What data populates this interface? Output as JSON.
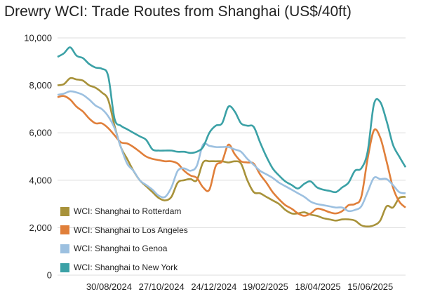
{
  "chart_data": {
    "type": "line",
    "title": "Drewry WCI: Trade Routes from Shanghai (US$/40ft)",
    "xlabel": "",
    "ylabel": "",
    "ylim": [
      0,
      10000
    ],
    "yticks": [
      "0",
      "2,000",
      "4,000",
      "6,000",
      "8,000",
      "10,000"
    ],
    "xticks": [
      "30/08/2024",
      "27/10/2024",
      "24/12/2024",
      "19/02/2025",
      "18/04/2025",
      "15/06/2025"
    ],
    "x": [
      "2024-07-04",
      "2024-07-11",
      "2024-07-18",
      "2024-07-25",
      "2024-08-01",
      "2024-08-08",
      "2024-08-15",
      "2024-08-22",
      "2024-08-29",
      "2024-09-05",
      "2024-09-12",
      "2024-09-19",
      "2024-09-26",
      "2024-10-03",
      "2024-10-10",
      "2024-10-17",
      "2024-10-24",
      "2024-10-31",
      "2024-11-07",
      "2024-11-14",
      "2024-11-21",
      "2024-11-28",
      "2024-12-05",
      "2024-12-12",
      "2024-12-19",
      "2024-12-26",
      "2025-01-02",
      "2025-01-09",
      "2025-01-16",
      "2025-01-23",
      "2025-01-30",
      "2025-02-06",
      "2025-02-13",
      "2025-02-20",
      "2025-02-27",
      "2025-03-06",
      "2025-03-13",
      "2025-03-20",
      "2025-03-27",
      "2025-04-03",
      "2025-04-10",
      "2025-04-17",
      "2025-04-24",
      "2025-05-01",
      "2025-05-08",
      "2025-05-15",
      "2025-05-22",
      "2025-05-29",
      "2025-06-05",
      "2025-06-12",
      "2025-06-19",
      "2025-06-26",
      "2025-07-03",
      "2025-07-10",
      "2025-07-17",
      "2025-07-24"
    ],
    "grid": true,
    "legend_position": "bottom-left",
    "series": [
      {
        "name": "WCI: Shanghai to Rotterdam",
        "color": "#a8923a",
        "values": [
          8000,
          8050,
          8300,
          8250,
          8200,
          8000,
          7900,
          7700,
          7400,
          6300,
          5400,
          4900,
          4400,
          4000,
          3750,
          3500,
          3250,
          3150,
          3300,
          3900,
          4000,
          4050,
          4000,
          4750,
          4800,
          4800,
          4800,
          4750,
          4800,
          4700,
          4000,
          3500,
          3450,
          3300,
          3150,
          3000,
          2750,
          2600,
          2600,
          2650,
          2550,
          2500,
          2400,
          2350,
          2300,
          2350,
          2350,
          2300,
          2100,
          2050,
          2100,
          2300,
          2900,
          2850,
          3250,
          3300
        ]
      },
      {
        "name": "WCI: Shanghai to Los Angeles",
        "color": "#e07f3a",
        "values": [
          7500,
          7550,
          7400,
          7100,
          6900,
          6600,
          6400,
          6400,
          6200,
          5900,
          5600,
          5550,
          5400,
          5200,
          5000,
          4900,
          4850,
          4800,
          4800,
          4700,
          4400,
          4200,
          4100,
          3700,
          3600,
          4600,
          4800,
          5500,
          5100,
          4800,
          4750,
          4700,
          4250,
          3900,
          3500,
          3200,
          2950,
          2800,
          2600,
          2500,
          2600,
          2800,
          2750,
          2650,
          2600,
          2700,
          2950,
          3000,
          3300,
          4900,
          6100,
          5800,
          4800,
          3700,
          3100,
          2850
        ]
      },
      {
        "name": "WCI: Shanghai to Genoa",
        "color": "#9cc0e0",
        "values": [
          7600,
          7650,
          7750,
          7700,
          7600,
          7400,
          7150,
          7000,
          6700,
          6200,
          5400,
          4700,
          4400,
          4000,
          3800,
          3600,
          3350,
          3300,
          3700,
          4400,
          4500,
          4400,
          4600,
          5500,
          5450,
          5400,
          5400,
          5400,
          5300,
          5200,
          4900,
          4650,
          4400,
          4250,
          4100,
          3900,
          3750,
          3600,
          3450,
          3300,
          3100,
          3000,
          2950,
          2900,
          2850,
          2850,
          2700,
          2750,
          2900,
          3500,
          4100,
          4050,
          4050,
          3800,
          3500,
          3450
        ]
      },
      {
        "name": "WCI: Shanghai to New York",
        "color": "#3ba1a6",
        "values": [
          9200,
          9350,
          9600,
          9250,
          9150,
          8900,
          8750,
          8700,
          8400,
          6600,
          6300,
          6150,
          6000,
          5850,
          5700,
          5300,
          5250,
          5250,
          5250,
          5200,
          5200,
          5150,
          5200,
          5400,
          6000,
          6300,
          6400,
          7100,
          6900,
          6400,
          6300,
          6250,
          5600,
          5000,
          4500,
          4200,
          3950,
          3800,
          3650,
          3850,
          3950,
          3700,
          3600,
          3550,
          3500,
          3700,
          3900,
          4400,
          4500,
          5200,
          7200,
          7300,
          6500,
          5500,
          5000,
          4550
        ]
      }
    ]
  }
}
